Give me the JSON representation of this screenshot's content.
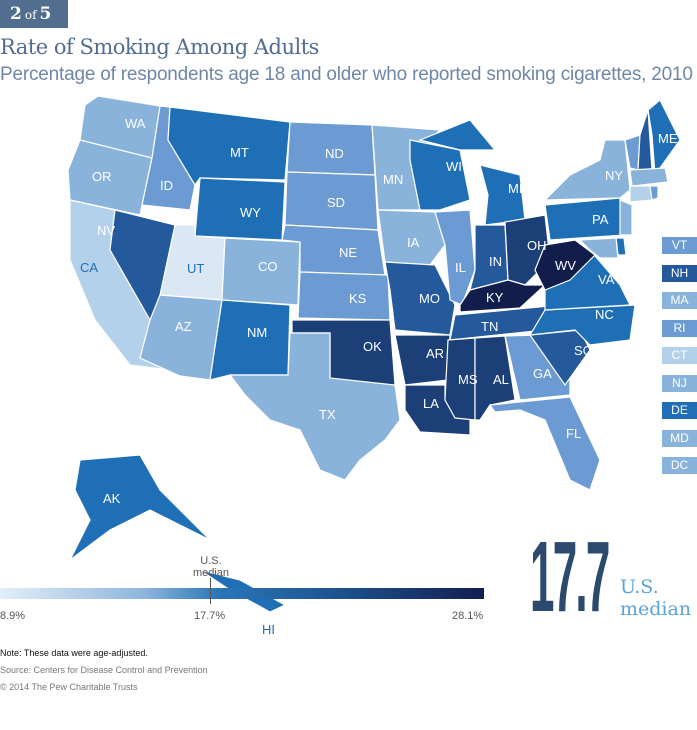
{
  "badge": {
    "current": "2",
    "of": "of",
    "total": "5"
  },
  "title": "Rate of Smoking Among Adults",
  "subtitle": "Percentage of respondents age 18 and older who reported smoking cigarettes, 2010",
  "colors": {
    "c1": "#dbe8f4",
    "c2": "#b4d1eb",
    "c3": "#8ab3dc",
    "c4": "#6b9bd2",
    "c5": "#1f6fb7",
    "c6": "#24599c",
    "c7": "#1c3f78",
    "c8": "#131d4c"
  },
  "states": [
    {
      "code": "WA",
      "shade": "c3"
    },
    {
      "code": "OR",
      "shade": "c3"
    },
    {
      "code": "CA",
      "shade": "c2"
    },
    {
      "code": "NV",
      "shade": "c6"
    },
    {
      "code": "ID",
      "shade": "c4"
    },
    {
      "code": "MT",
      "shade": "c5"
    },
    {
      "code": "WY",
      "shade": "c5"
    },
    {
      "code": "UT",
      "shade": "c1"
    },
    {
      "code": "AZ",
      "shade": "c3"
    },
    {
      "code": "CO",
      "shade": "c3"
    },
    {
      "code": "NM",
      "shade": "c5"
    },
    {
      "code": "ND",
      "shade": "c4"
    },
    {
      "code": "SD",
      "shade": "c4"
    },
    {
      "code": "NE",
      "shade": "c4"
    },
    {
      "code": "KS",
      "shade": "c4"
    },
    {
      "code": "OK",
      "shade": "c7"
    },
    {
      "code": "TX",
      "shade": "c3"
    },
    {
      "code": "MN",
      "shade": "c3"
    },
    {
      "code": "IA",
      "shade": "c3"
    },
    {
      "code": "MO",
      "shade": "c6"
    },
    {
      "code": "AR",
      "shade": "c7"
    },
    {
      "code": "LA",
      "shade": "c7"
    },
    {
      "code": "WI",
      "shade": "c5"
    },
    {
      "code": "IL",
      "shade": "c4"
    },
    {
      "code": "MI",
      "shade": "c5"
    },
    {
      "code": "IN",
      "shade": "c6"
    },
    {
      "code": "OH",
      "shade": "c7"
    },
    {
      "code": "KY",
      "shade": "c8"
    },
    {
      "code": "TN",
      "shade": "c6"
    },
    {
      "code": "MS",
      "shade": "c7"
    },
    {
      "code": "AL",
      "shade": "c7"
    },
    {
      "code": "GA",
      "shade": "c4"
    },
    {
      "code": "FL",
      "shade": "c4"
    },
    {
      "code": "SC",
      "shade": "c6"
    },
    {
      "code": "NC",
      "shade": "c5"
    },
    {
      "code": "VA",
      "shade": "c5"
    },
    {
      "code": "WV",
      "shade": "c8"
    },
    {
      "code": "PA",
      "shade": "c5"
    },
    {
      "code": "NY",
      "shade": "c3"
    },
    {
      "code": "ME",
      "shade": "c5"
    },
    {
      "code": "AK",
      "shade": "c5"
    },
    {
      "code": "HI",
      "shade": "c5"
    }
  ],
  "small_states": [
    {
      "code": "VT",
      "shade": "c4"
    },
    {
      "code": "NH",
      "shade": "c6"
    },
    {
      "code": "MA",
      "shade": "c3"
    },
    {
      "code": "RI",
      "shade": "c4"
    },
    {
      "code": "CT",
      "shade": "c2"
    },
    {
      "code": "NJ",
      "shade": "c3"
    },
    {
      "code": "DE",
      "shade": "c5"
    },
    {
      "code": "MD",
      "shade": "c3"
    },
    {
      "code": "DC",
      "shade": "c3"
    }
  ],
  "legend": {
    "min": "8.9%",
    "median": "17.7%",
    "max": "28.1%",
    "median_label": "U.S. median"
  },
  "headline": {
    "value": "17.7",
    "label_line1": "U.S.",
    "label_line2": "median"
  },
  "footer": {
    "note": "Note: These data were age-adjusted.",
    "source": "Source: Centers for Disease Control and Prevention",
    "copyright": "© 2014 The Pew Charitable Trusts"
  }
}
